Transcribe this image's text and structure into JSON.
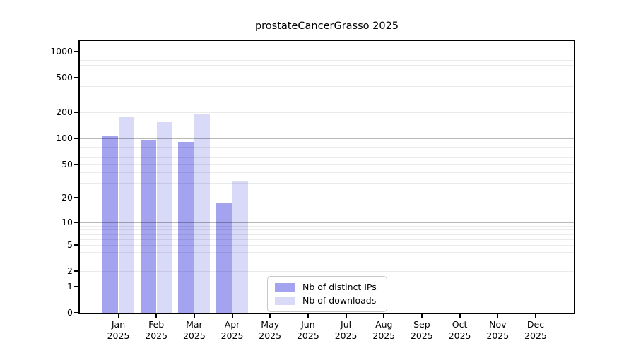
{
  "title": "prostateCancerGrasso 2025",
  "chart_data": {
    "type": "bar",
    "title": "prostateCancerGrasso 2025",
    "categories": [
      "Jan",
      "Feb",
      "Mar",
      "Apr",
      "May",
      "Jun",
      "Jul",
      "Aug",
      "Sep",
      "Oct",
      "Nov",
      "Dec"
    ],
    "year_label": "2025",
    "series": [
      {
        "name": "Nb of distinct IPs",
        "color": "#a3a3ef",
        "values": [
          105,
          95,
          91,
          17,
          0,
          0,
          0,
          0,
          0,
          0,
          0,
          0
        ]
      },
      {
        "name": "Nb of downloads",
        "color": "#d9d9f8",
        "values": [
          175,
          155,
          188,
          32,
          0,
          0,
          0,
          0,
          0,
          0,
          0,
          0
        ]
      }
    ],
    "xlabel": "",
    "ylabel": "",
    "yscale": "log10(1+x)",
    "yticks": [
      0,
      1,
      2,
      5,
      10,
      20,
      50,
      100,
      200,
      500,
      1000
    ],
    "major_gridlines": [
      1,
      10,
      100,
      1000
    ],
    "minor_gridlines": [
      2,
      3,
      4,
      5,
      6,
      7,
      8,
      9,
      20,
      30,
      40,
      50,
      60,
      70,
      80,
      90,
      200,
      300,
      400,
      500,
      600,
      700,
      800,
      900
    ],
    "ylim": [
      0,
      1300
    ],
    "grid": "horizontal",
    "legend_position": "bottom-center-inside",
    "colors": {
      "background": "#ffffff",
      "frame": "#000000",
      "major_grid_rgba": "rgba(0,0,0,0.28)",
      "minor_grid_rgba": "rgba(0,0,0,0.08)"
    }
  }
}
